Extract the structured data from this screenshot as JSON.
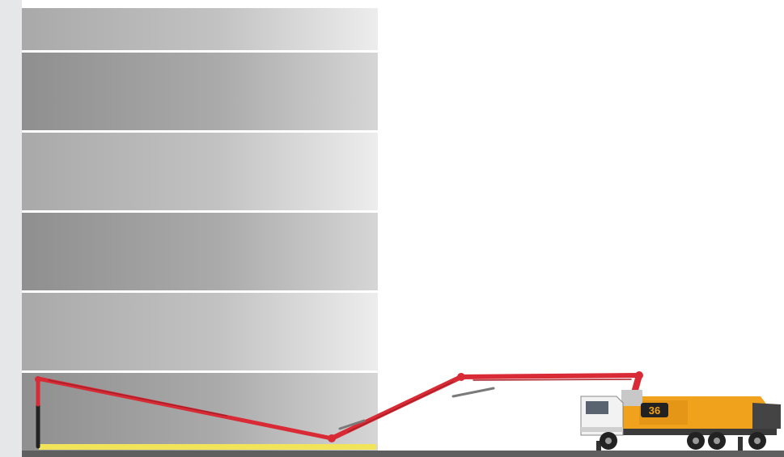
{
  "colors": {
    "boom": "#d92b35",
    "boom_dark": "#a81f28",
    "truck_body": "#f0a21c",
    "cab": "#f2f2f2",
    "ground": "#5f5f5f",
    "slab_marker": "#f1e45a",
    "strip": "#e6e7e9"
  },
  "truck": {
    "badge_text": "36"
  }
}
